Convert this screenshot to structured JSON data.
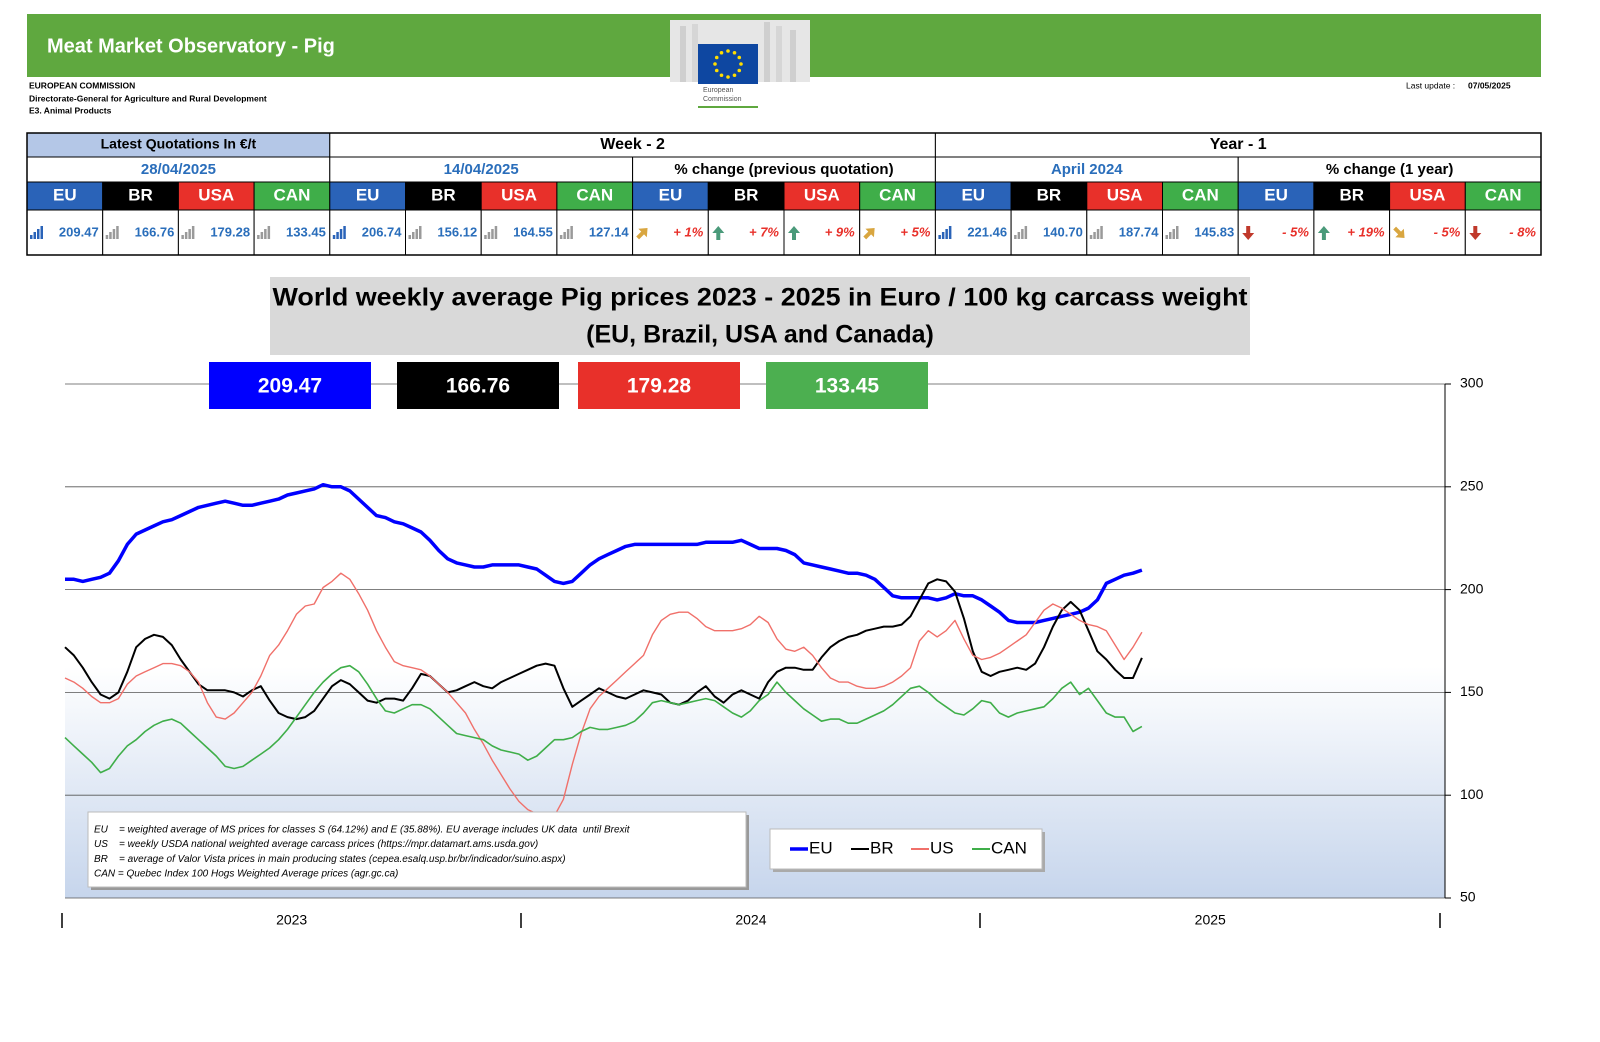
{
  "header": {
    "title": "Meat Market Observatory - Pig",
    "organization": [
      "EUROPEAN COMMISSION",
      "Directorate-General for Agriculture and Rural Development",
      "E3. Animal Products"
    ],
    "logo_text": [
      "European",
      "Commission"
    ],
    "last_update_label": "Last update :",
    "last_update": "07/05/2025"
  },
  "table": {
    "groups": [
      "Latest Quotations In €/t",
      "Week - 2",
      "Year - 1"
    ],
    "subheaders": [
      "28/04/2025",
      "14/04/2025",
      "% change (previous quotation)",
      "April 2024",
      "% change (1 year)"
    ],
    "countries": [
      "EU",
      "BR",
      "USA",
      "CAN"
    ],
    "rows": [
      [
        "209.47",
        "166.76",
        "179.28",
        "133.45",
        "206.74",
        "156.12",
        "164.55",
        "127.14",
        "+ 1%",
        "+ 7%",
        "+ 9%",
        "+ 5%",
        "221.46",
        "140.70",
        "187.74",
        "145.83",
        "- 5%",
        "+ 19%",
        "- 5%",
        "- 8%"
      ]
    ]
  },
  "chart_data": {
    "type": "line",
    "title": [
      "World weekly average Pig prices 2023 - 2025  in Euro / 100 kg carcass weight",
      "(EU, Brazil, USA and Canada)"
    ],
    "badges": [
      {
        "value": 209.47,
        "color": "#0000ff"
      },
      {
        "value": 166.76,
        "color": "#000000"
      },
      {
        "value": 179.28,
        "color": "#e8302a"
      },
      {
        "value": 133.45,
        "color": "#4caf50"
      }
    ],
    "categories": [
      null,
      null,
      null,
      null,
      null,
      null,
      null,
      null,
      null,
      null,
      null,
      null,
      null,
      null,
      null,
      null,
      null,
      null,
      null,
      null,
      null,
      null,
      null,
      null,
      null,
      null,
      null,
      null,
      null,
      null,
      null,
      null,
      null,
      null,
      null,
      null,
      null,
      null,
      null,
      null,
      null,
      null,
      null,
      null,
      null,
      null,
      null,
      null,
      null,
      null,
      null,
      null,
      null,
      null,
      null,
      null,
      null,
      null,
      null,
      null,
      null,
      null,
      null,
      null,
      null,
      null,
      null,
      null,
      null,
      null,
      null,
      null,
      null,
      null,
      null,
      null,
      null,
      null,
      null,
      null,
      null,
      null,
      null,
      null,
      null,
      null,
      null,
      null,
      null,
      null,
      null,
      null,
      null,
      null,
      null,
      null,
      null,
      null,
      null,
      null,
      null,
      null,
      null,
      null,
      null,
      null,
      null,
      null,
      null,
      null,
      null,
      null,
      null,
      null,
      null,
      null,
      null,
      null,
      null,
      null,
      null,
      null
    ],
    "year_labels": [
      2023,
      2024,
      2025
    ],
    "ylim": [
      50,
      300
    ],
    "yticks": [
      50,
      100,
      150,
      200,
      250,
      300
    ],
    "grid": true,
    "series": [
      {
        "name": "EU",
        "color": "#0000ff",
        "values": [
          205,
          205,
          204,
          205,
          206,
          208,
          214,
          222,
          227,
          229,
          231,
          233,
          234,
          236,
          238,
          240,
          241,
          242,
          243,
          242,
          241,
          241,
          242,
          243,
          244,
          246,
          247,
          248,
          249,
          251,
          250,
          250,
          248,
          244,
          240,
          236,
          235,
          233,
          232,
          230,
          228,
          224,
          219,
          215,
          213,
          212,
          211,
          211,
          212,
          212,
          212,
          212,
          211,
          210,
          207,
          204,
          203,
          204,
          208,
          212,
          215,
          217,
          219,
          221,
          222,
          222,
          222,
          222,
          222,
          222,
          222,
          222,
          223,
          223,
          223,
          223,
          224,
          222,
          220,
          220,
          220,
          219,
          217,
          213,
          212,
          211,
          210,
          209,
          208,
          208,
          207,
          205,
          201,
          197,
          196,
          196,
          196,
          196,
          195,
          196,
          198,
          197,
          197,
          195,
          192,
          189,
          185,
          184,
          184,
          184,
          185,
          186,
          187,
          188,
          189,
          191,
          195,
          203,
          205,
          207,
          208,
          209.47
        ]
      },
      {
        "name": "BR",
        "color": "#000000",
        "values": [
          172,
          168,
          162,
          155,
          149,
          147,
          150,
          160,
          172,
          176,
          178,
          177,
          173,
          166,
          160,
          154,
          151,
          151,
          151,
          150,
          148,
          151,
          153,
          146,
          140,
          138,
          137,
          138,
          141,
          147,
          153,
          156,
          154,
          150,
          146,
          145,
          147,
          147,
          146,
          152,
          159,
          158,
          154,
          150,
          151,
          153,
          155,
          153,
          152,
          155,
          157,
          159,
          161,
          163,
          164,
          163,
          152,
          143,
          146,
          149,
          152,
          150,
          148,
          147,
          149,
          151,
          150,
          149,
          145,
          144,
          146,
          150,
          153,
          148,
          145,
          149,
          151,
          149,
          147,
          155,
          160,
          162,
          162,
          161,
          161,
          167,
          172,
          175,
          177,
          178,
          180,
          181,
          182,
          182,
          183,
          187,
          195,
          203,
          205,
          204,
          199,
          186,
          170,
          160,
          158,
          160,
          161,
          162,
          161,
          164,
          172,
          182,
          190,
          194,
          190,
          180,
          170,
          166,
          161,
          157,
          157,
          166.76
        ]
      },
      {
        "name": "US",
        "color": "#f0706a",
        "values": [
          157,
          155,
          152,
          148,
          145,
          145,
          147,
          154,
          158,
          160,
          162,
          164,
          164,
          163,
          160,
          155,
          145,
          138,
          137,
          140,
          145,
          150,
          158,
          168,
          173,
          180,
          188,
          192,
          193,
          201,
          204,
          208,
          205,
          198,
          190,
          180,
          172,
          165,
          163,
          162,
          161,
          158,
          154,
          150,
          145,
          140,
          132,
          125,
          117,
          110,
          103,
          97,
          93,
          91,
          89,
          90,
          98,
          115,
          130,
          142,
          148,
          152,
          156,
          160,
          164,
          168,
          178,
          185,
          188,
          189,
          189,
          186,
          182,
          180,
          180,
          180,
          181,
          183,
          187,
          184,
          176,
          171,
          170,
          172,
          168,
          162,
          157,
          155,
          155,
          153,
          152,
          152,
          153,
          155,
          158,
          162,
          175,
          180,
          177,
          180,
          185,
          176,
          168,
          166,
          167,
          169,
          172,
          175,
          178,
          184,
          190,
          193,
          191,
          188,
          185,
          183,
          182,
          180,
          173,
          166,
          172,
          179.28
        ]
      },
      {
        "name": "CAN",
        "color": "#3fae49",
        "values": [
          128,
          124,
          120,
          116,
          111,
          113,
          119,
          124,
          127,
          131,
          134,
          136,
          137,
          135,
          131,
          127,
          123,
          119,
          114,
          113,
          114,
          117,
          120,
          123,
          127,
          132,
          138,
          144,
          150,
          155,
          159,
          162,
          163,
          160,
          154,
          147,
          141,
          140,
          142,
          144,
          144,
          142,
          138,
          134,
          130,
          129,
          128,
          127,
          124,
          122,
          121,
          120,
          117,
          119,
          123,
          127,
          127,
          128,
          131,
          133,
          132,
          132,
          133,
          134,
          136,
          140,
          145,
          146,
          145,
          144,
          145,
          146,
          147,
          146,
          143,
          140,
          138,
          141,
          146,
          149,
          155,
          150,
          146,
          142,
          139,
          136,
          137,
          137,
          135,
          135,
          137,
          139,
          141,
          144,
          148,
          152,
          153,
          150,
          146,
          143,
          140,
          139,
          142,
          146,
          145,
          140,
          138,
          140,
          141,
          142,
          143,
          147,
          152,
          155,
          149,
          152,
          146,
          140,
          138,
          138,
          131,
          133.45
        ]
      }
    ],
    "notes": [
      "EU    = weighted average of MS prices for classes S (64.12%) and E (35.88%). EU average includes UK data  until Brexit",
      "US    = weekly USDA national weighted average carcass prices (https://mpr.datamart.ams.usda.gov)",
      "BR    = average of Valor Vista prices in main producing states (cepea.esalq.usp.br/br/indicador/suino.aspx)",
      "CAN = Quebec Index 100 Hogs Weighted Average prices (agr.gc.ca)"
    ]
  }
}
